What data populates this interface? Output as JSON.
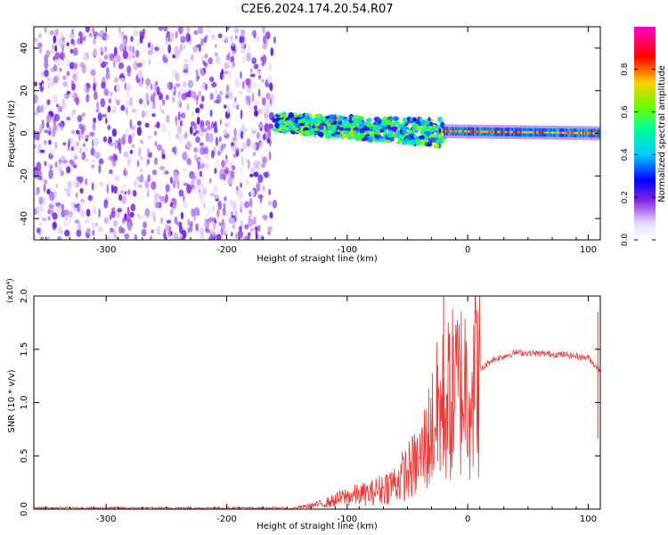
{
  "title": "C2E6.2024.174.20.54.R07",
  "colors": {
    "snr_line": "#ee3333",
    "colorbar": [
      "#ff00cc",
      "#ff0000",
      "#ffcc00",
      "#66ff00",
      "#00ff99",
      "#00ccff",
      "#0000ff",
      "#8a2be2",
      "#e8d8ff",
      "#ffffff"
    ]
  },
  "chart_data": [
    {
      "type": "heatmap",
      "name": "spectrogram",
      "xlabel": "Height of straight line (km)",
      "ylabel": "Frequency (Hz)",
      "xlim": [
        -360,
        110
      ],
      "ylim": [
        -50,
        50
      ],
      "x_ticks": [
        -300,
        -200,
        -100,
        0,
        100
      ],
      "y_ticks": [
        -40,
        -20,
        0,
        20,
        40
      ],
      "colorbar": {
        "label": "Normalized spectral amplitude",
        "range": [
          0,
          1
        ],
        "ticks": [
          "0.0",
          "0.2",
          "0.4",
          "0.6",
          "0.8"
        ]
      },
      "regions": [
        {
          "x_from": -360,
          "x_to": -160,
          "frequency_spread": [
            -50,
            50
          ],
          "amplitude": 0.1,
          "pattern": "noise"
        },
        {
          "x_from": -160,
          "x_to": -20,
          "center_frequency": [
            5,
            0
          ],
          "width_hz": 8,
          "amplitude": 0.6,
          "pattern": "broad band"
        },
        {
          "x_from": -20,
          "x_to": 110,
          "center_frequency": [
            1,
            0
          ],
          "width_hz": 4,
          "amplitude": 0.9,
          "pattern": "narrow line"
        }
      ]
    },
    {
      "type": "line",
      "name": "snr",
      "xlabel": "Height of straight line (km)",
      "ylabel": "SNR (10 * v/v)",
      "y_multiplier": "(x10⁴)",
      "xlim": [
        -360,
        110
      ],
      "ylim": [
        0,
        2
      ],
      "x_ticks": [
        -300,
        -200,
        -100,
        0,
        100
      ],
      "y_ticks": [
        "0.0",
        "0.5",
        "1.0",
        "1.5",
        "2.0"
      ],
      "envelope": [
        {
          "x": -360,
          "y": 0.0
        },
        {
          "x": -150,
          "y": 0.0
        },
        {
          "x": -120,
          "y": 0.05
        },
        {
          "x": -100,
          "y": 0.12
        },
        {
          "x": -80,
          "y": 0.15
        },
        {
          "x": -60,
          "y": 0.25
        },
        {
          "x": -40,
          "y": 0.45
        },
        {
          "x": -25,
          "y": 0.9
        },
        {
          "x": -10,
          "y": 1.1
        },
        {
          "x": 0,
          "y": 1.2
        },
        {
          "x": 20,
          "y": 1.4
        },
        {
          "x": 40,
          "y": 1.47
        },
        {
          "x": 80,
          "y": 1.45
        },
        {
          "x": 100,
          "y": 1.42
        },
        {
          "x": 110,
          "y": 1.3
        }
      ],
      "peaks": [
        {
          "x": -20,
          "y": 2.0
        },
        {
          "x": -15,
          "y": 1.65
        },
        {
          "x": -25,
          "y": 1.35
        },
        {
          "x": -12,
          "y": 1.62
        },
        {
          "x": 108,
          "y": 1.85
        }
      ]
    }
  ]
}
